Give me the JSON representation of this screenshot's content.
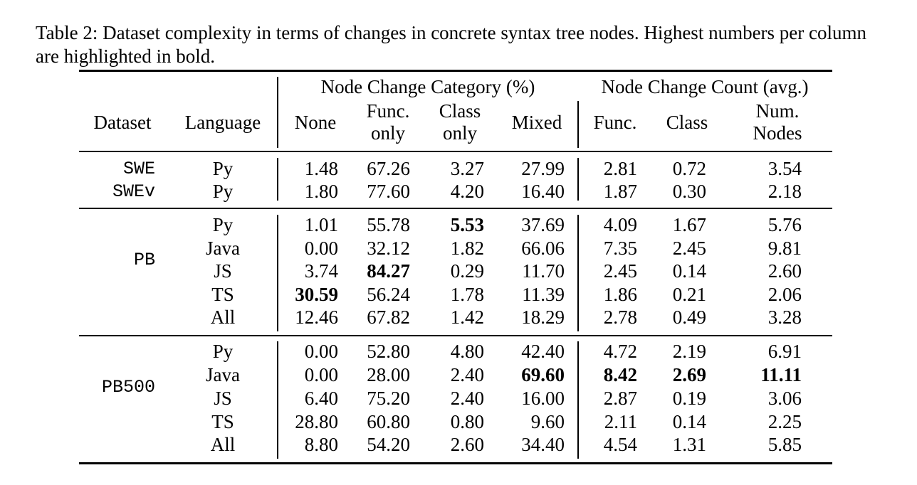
{
  "caption": "Table 2: Dataset complexity in terms of changes in concrete syntax tree nodes. Highest numbers per column are highlighted in bold.",
  "header": {
    "group1": "Node Change Category (%)",
    "group2": "Node Change Count (avg.)",
    "dataset": "Dataset",
    "language": "Language",
    "none": "None",
    "func_only": "Func.\nonly",
    "class_only": "Class\nonly",
    "mixed": "Mixed",
    "func": "Func.",
    "class": "Class",
    "num_nodes": "Num.\nNodes"
  },
  "groups": [
    {
      "dataset": "SWE\nSWEv",
      "rows": [
        {
          "dataset": "SWE",
          "language": "Py",
          "values": [
            "1.48",
            "67.26",
            "3.27",
            "27.99",
            "2.81",
            "0.72",
            "3.54"
          ],
          "bold": []
        },
        {
          "dataset": "SWEv",
          "language": "Py",
          "values": [
            "1.80",
            "77.60",
            "4.20",
            "16.40",
            "1.87",
            "0.30",
            "2.18"
          ],
          "bold": []
        }
      ]
    },
    {
      "dataset": "PB",
      "rows": [
        {
          "language": "Py",
          "values": [
            "1.01",
            "55.78",
            "5.53",
            "37.69",
            "4.09",
            "1.67",
            "5.76"
          ],
          "bold": [
            2
          ]
        },
        {
          "language": "Java",
          "values": [
            "0.00",
            "32.12",
            "1.82",
            "66.06",
            "7.35",
            "2.45",
            "9.81"
          ],
          "bold": []
        },
        {
          "language": "JS",
          "values": [
            "3.74",
            "84.27",
            "0.29",
            "11.70",
            "2.45",
            "0.14",
            "2.60"
          ],
          "bold": [
            1
          ]
        },
        {
          "language": "TS",
          "values": [
            "30.59",
            "56.24",
            "1.78",
            "11.39",
            "1.86",
            "0.21",
            "2.06"
          ],
          "bold": [
            0
          ]
        },
        {
          "language": "All",
          "values": [
            "12.46",
            "67.82",
            "1.42",
            "18.29",
            "2.78",
            "0.49",
            "3.28"
          ],
          "bold": []
        }
      ]
    },
    {
      "dataset": "PB500",
      "rows": [
        {
          "language": "Py",
          "values": [
            "0.00",
            "52.80",
            "4.80",
            "42.40",
            "4.72",
            "2.19",
            "6.91"
          ],
          "bold": []
        },
        {
          "language": "Java",
          "values": [
            "0.00",
            "28.00",
            "2.40",
            "69.60",
            "8.42",
            "2.69",
            "11.11"
          ],
          "bold": [
            3,
            4,
            5,
            6
          ]
        },
        {
          "language": "JS",
          "values": [
            "6.40",
            "75.20",
            "2.40",
            "16.00",
            "2.87",
            "0.19",
            "3.06"
          ],
          "bold": []
        },
        {
          "language": "TS",
          "values": [
            "28.80",
            "60.80",
            "0.80",
            "9.60",
            "2.11",
            "0.14",
            "2.25"
          ],
          "bold": []
        },
        {
          "language": "All",
          "values": [
            "8.80",
            "54.20",
            "2.60",
            "34.40",
            "4.54",
            "1.31",
            "5.85"
          ],
          "bold": []
        }
      ]
    }
  ]
}
